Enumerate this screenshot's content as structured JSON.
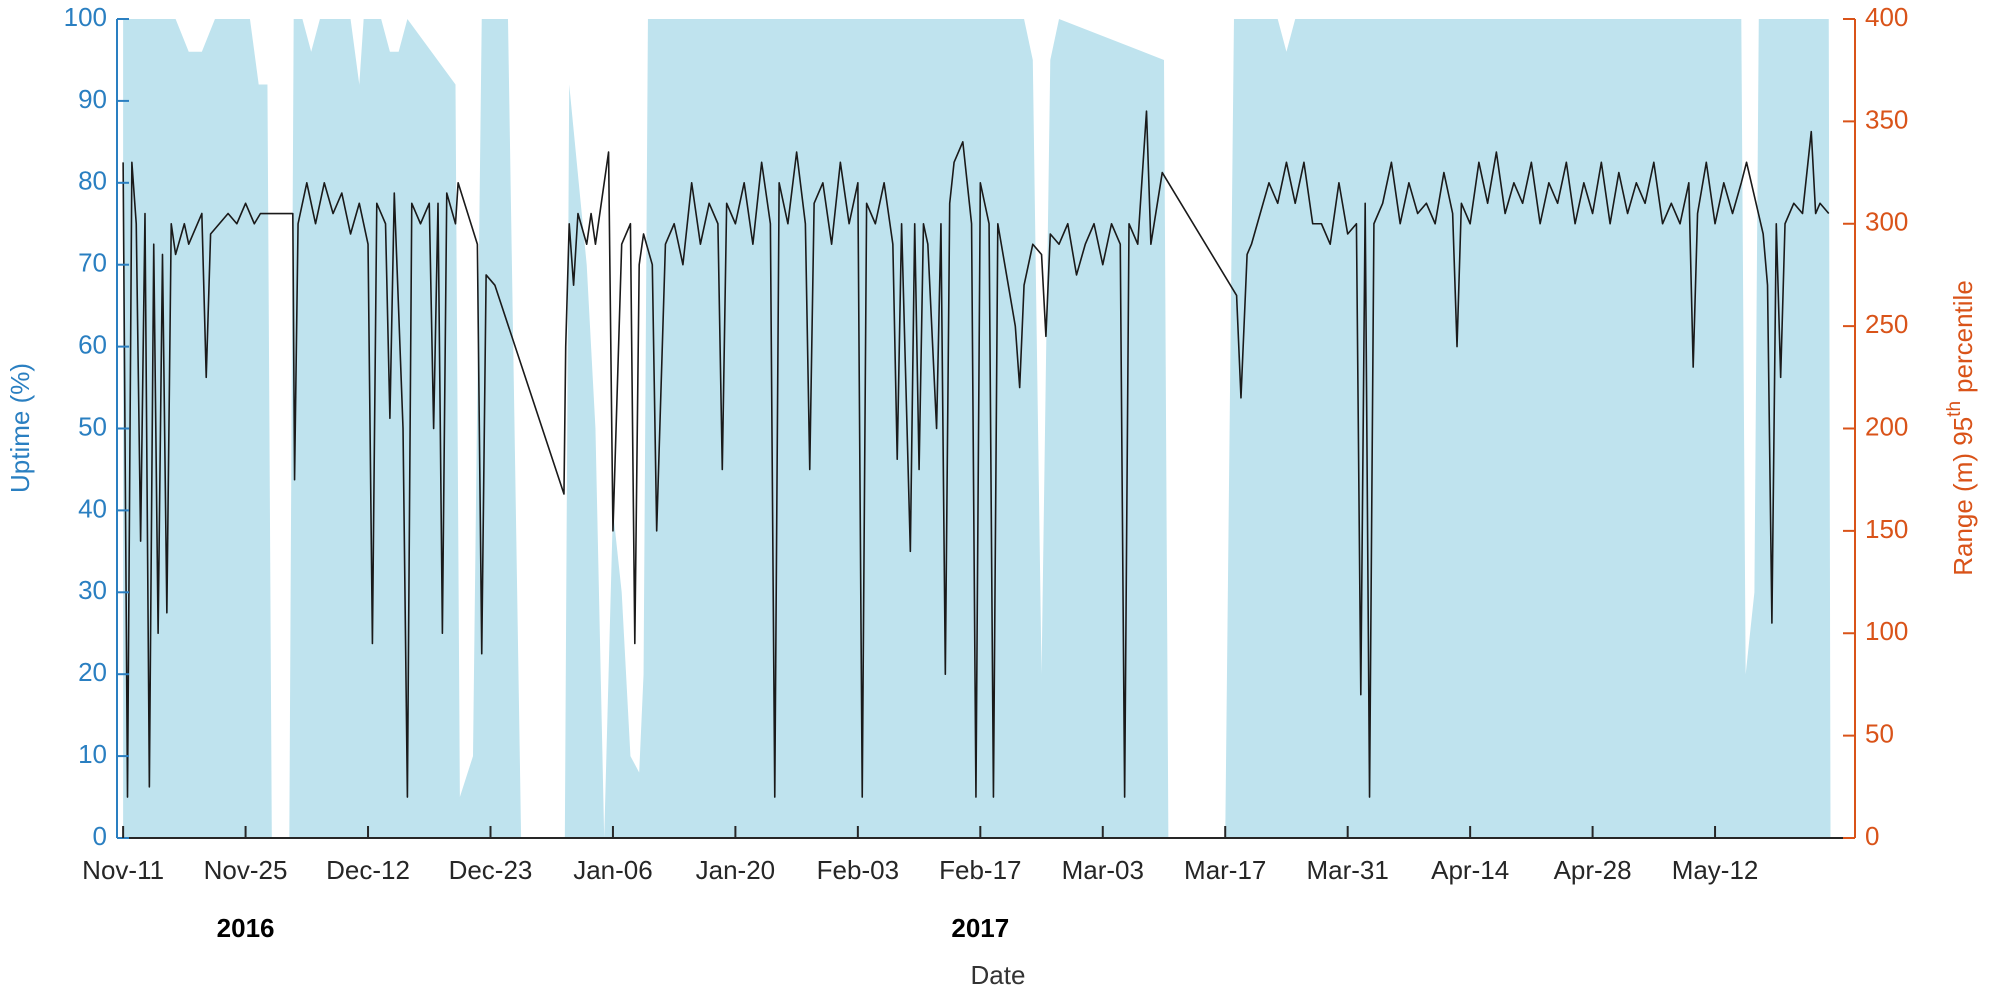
{
  "chart_data": {
    "type": "line",
    "xlabel": "Date",
    "ylabel": "Uptime (%)",
    "y2label_parts": [
      "Range (m) 95",
      "th",
      "percentile"
    ],
    "annotations": [
      {
        "text": "2016",
        "x": 14
      },
      {
        "text": "2017",
        "x": 98
      }
    ],
    "xlim": [
      -0.7,
      198
    ],
    "xticks": [
      {
        "value": 0,
        "label": "Nov-11"
      },
      {
        "value": 14,
        "label": "Nov-25"
      },
      {
        "value": 28,
        "label": "Dec-12"
      },
      {
        "value": 42,
        "label": "Dec-23"
      },
      {
        "value": 56,
        "label": "Jan-06"
      },
      {
        "value": 70,
        "label": "Jan-20"
      },
      {
        "value": 84,
        "label": "Feb-03"
      },
      {
        "value": 98,
        "label": "Feb-17"
      },
      {
        "value": 112,
        "label": "Mar-03"
      },
      {
        "value": 126,
        "label": "Mar-17"
      },
      {
        "value": 140,
        "label": "Mar-31"
      },
      {
        "value": 154,
        "label": "Apr-14"
      },
      {
        "value": 168,
        "label": "Apr-28"
      },
      {
        "value": 182,
        "label": "May-12"
      }
    ],
    "ylim": [
      0,
      100
    ],
    "yticks": [
      0,
      10,
      20,
      30,
      40,
      50,
      60,
      70,
      80,
      90,
      100
    ],
    "y2lim": [
      0,
      400
    ],
    "y2ticks": [
      0,
      50,
      100,
      150,
      200,
      250,
      300,
      350,
      400
    ],
    "ycolor": "#2a7fc1",
    "y2color": "#d95319",
    "series": [
      {
        "style": "area",
        "color": "#bfe3ee",
        "x": [
          0,
          6,
          7.5,
          9,
          10.5,
          14.5,
          15.5,
          16.5,
          17,
          19,
          19.5,
          20.5,
          21.5,
          22.5,
          26,
          27,
          27.5,
          29.5,
          30.5,
          31.5,
          32.5,
          38,
          38.5,
          40,
          41,
          44,
          45.5,
          50.5,
          51,
          53,
          54,
          55,
          56,
          57,
          58,
          59,
          59.5,
          60,
          103,
          104,
          105,
          106,
          107,
          119,
          119.5,
          126,
          127,
          132,
          133,
          134,
          185,
          185.5,
          186.5,
          187,
          195,
          195.2
        ],
        "values": [
          100,
          100,
          96,
          96,
          100,
          100,
          92,
          92,
          0,
          0,
          100,
          100,
          96,
          100,
          100,
          92,
          100,
          100,
          96,
          96,
          100,
          92,
          5,
          10,
          100,
          100,
          0,
          0,
          92,
          70,
          50,
          0,
          40,
          30,
          10,
          8,
          20,
          100,
          100,
          95,
          20,
          95,
          100,
          95,
          0,
          0,
          100,
          100,
          96,
          100,
          100,
          20,
          30,
          100,
          100,
          0
        ]
      },
      {
        "style": "line",
        "axis": "y2",
        "color": "#1a1a1a",
        "x": [
          0,
          0.5,
          1,
          1.5,
          2,
          2.5,
          3,
          3.5,
          4,
          4.5,
          5,
          5.5,
          6,
          7,
          7.5,
          8,
          9,
          9.5,
          10,
          11,
          12,
          13,
          14,
          15,
          15.7,
          19.4,
          19.6,
          20,
          21,
          22,
          23,
          24,
          25,
          26,
          27,
          28,
          28.5,
          29,
          30,
          30.5,
          31,
          32,
          32.5,
          33,
          34,
          35,
          35.5,
          36,
          36.5,
          37,
          38,
          38.3,
          40.5,
          41,
          41.5,
          42.5,
          50.4,
          50.6,
          51,
          51.5,
          52,
          53,
          53.5,
          54,
          55,
          55.5,
          56,
          57,
          58,
          58.5,
          59,
          59.5,
          60.5,
          61,
          62,
          63,
          64,
          65,
          66,
          67,
          68,
          68.5,
          69,
          70,
          71,
          72,
          73,
          74,
          74.5,
          75,
          76,
          77,
          78,
          78.5,
          79,
          80,
          81,
          82,
          83,
          84,
          84.5,
          85,
          86,
          87,
          88,
          88.5,
          89,
          90,
          90.5,
          91,
          91.5,
          92,
          93,
          93.5,
          94,
          94.5,
          95,
          96,
          97,
          97.5,
          98,
          99,
          99.5,
          100,
          101,
          102,
          102.5,
          103,
          104,
          105,
          105.5,
          106,
          107,
          108,
          109,
          110,
          111,
          112,
          113,
          114,
          114.5,
          115,
          116,
          117,
          117.5,
          118.8,
          127.3,
          127.8,
          128.5,
          129,
          130,
          131,
          132,
          133,
          134,
          135,
          136,
          137,
          138,
          139,
          140,
          141,
          141.5,
          142,
          142.5,
          143,
          144,
          145,
          146,
          147,
          148,
          149,
          150,
          151,
          152,
          152.5,
          153,
          154,
          155,
          156,
          157,
          158,
          159,
          160,
          161,
          162,
          163,
          164,
          165,
          166,
          167,
          168,
          169,
          170,
          171,
          172,
          173,
          174,
          175,
          176,
          177,
          178,
          179,
          179.5,
          180,
          181,
          182,
          183,
          184,
          185,
          185.6,
          187.5,
          188,
          188.5,
          189,
          189.5,
          190,
          191,
          192,
          193,
          193.5,
          194,
          195
        ],
        "values": [
          330,
          20,
          330,
          300,
          145,
          305,
          25,
          290,
          100,
          285,
          110,
          300,
          285,
          300,
          290,
          295,
          305,
          225,
          295,
          300,
          305,
          300,
          310,
          300,
          305,
          305,
          175,
          300,
          320,
          300,
          320,
          305,
          315,
          295,
          310,
          290,
          95,
          310,
          300,
          205,
          315,
          200,
          20,
          310,
          300,
          310,
          200,
          310,
          100,
          315,
          300,
          320,
          290,
          90,
          275,
          270,
          168,
          240,
          300,
          270,
          305,
          290,
          305,
          290,
          320,
          335,
          150,
          290,
          300,
          95,
          280,
          295,
          280,
          150,
          290,
          300,
          280,
          320,
          290,
          310,
          300,
          180,
          310,
          300,
          320,
          290,
          330,
          300,
          20,
          320,
          300,
          335,
          300,
          180,
          310,
          320,
          290,
          330,
          300,
          320,
          20,
          310,
          300,
          320,
          290,
          185,
          300,
          140,
          300,
          180,
          300,
          290,
          200,
          300,
          80,
          310,
          330,
          340,
          300,
          20,
          320,
          300,
          20,
          300,
          275,
          250,
          220,
          270,
          290,
          285,
          245,
          295,
          290,
          300,
          275,
          290,
          300,
          280,
          300,
          290,
          20,
          300,
          290,
          355,
          290,
          325,
          265,
          215,
          285,
          290,
          305,
          320,
          310,
          330,
          310,
          330,
          300,
          300,
          290,
          320,
          295,
          300,
          70,
          310,
          20,
          300,
          310,
          330,
          300,
          320,
          305,
          310,
          300,
          325,
          305,
          240,
          310,
          300,
          330,
          310,
          335,
          305,
          320,
          310,
          330,
          300,
          320,
          310,
          330,
          300,
          320,
          305,
          330,
          300,
          325,
          305,
          320,
          310,
          330,
          300,
          310,
          300,
          320,
          230,
          305,
          330,
          300,
          320,
          305,
          320,
          330,
          295,
          270,
          105,
          300,
          225,
          300,
          310,
          305,
          345,
          305,
          310,
          305
        ]
      }
    ]
  }
}
